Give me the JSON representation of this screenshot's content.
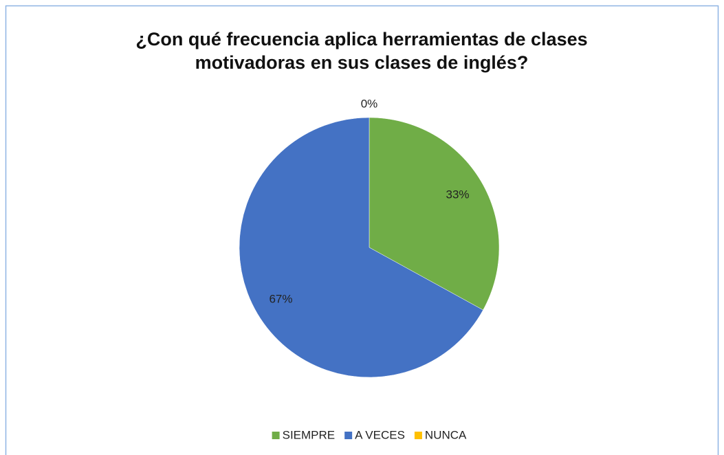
{
  "chart_data": {
    "type": "pie",
    "title": "¿Con qué frecuencia aplica herramientas de clases motivadoras en sus clases de inglés?",
    "categories": [
      "SIEMPRE",
      "A VECES",
      "NUNCA"
    ],
    "values": [
      33,
      67,
      0
    ],
    "value_labels": [
      "33%",
      "67%",
      "0%"
    ],
    "colors": [
      "#70ad47",
      "#4472c4",
      "#ffc000"
    ],
    "legend": "bottom"
  }
}
